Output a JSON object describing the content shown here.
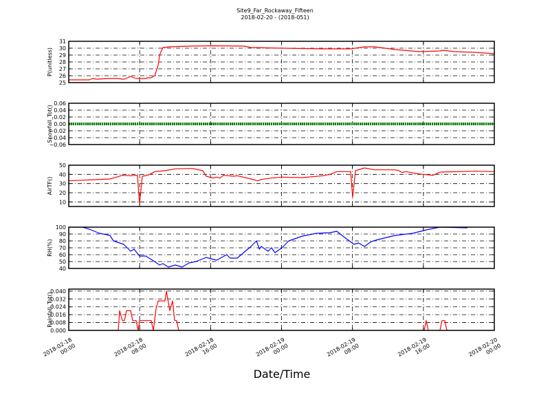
{
  "title": "Site9_Far_Rockaway_Fifteen",
  "subtitle": "2018-02-20 - (2018-051)",
  "xlabel": "Date/Time",
  "x_ticks": [
    {
      "hour": 0,
      "line1": "2018-02-18",
      "line2": "00:00"
    },
    {
      "hour": 8,
      "line1": "2018-02-18",
      "line2": "08:00"
    },
    {
      "hour": 16,
      "line1": "2018-02-18",
      "line2": "16:00"
    },
    {
      "hour": 24,
      "line1": "2018-02-19",
      "line2": "00:00"
    },
    {
      "hour": 32,
      "line1": "2018-02-19",
      "line2": "08:00"
    },
    {
      "hour": 40,
      "line1": "2018-02-19",
      "line2": "16:00"
    },
    {
      "hour": 48,
      "line1": "2018-02-20",
      "line2": "00:00"
    }
  ],
  "chart_data": [
    {
      "type": "line",
      "ylabel": "P(unitless)",
      "ylim": [
        25,
        31
      ],
      "yticks": [
        "25",
        "26",
        "27",
        "28",
        "29",
        "30",
        "31"
      ],
      "ytick_values": [
        25,
        26,
        27,
        28,
        29,
        30,
        31
      ],
      "color": "#ff0000",
      "grid": true,
      "xlim_hours": [
        0,
        48
      ],
      "points": [
        [
          0,
          25.4
        ],
        [
          1.55,
          25.4
        ],
        [
          2.33,
          25.4
        ],
        [
          2.7,
          25.6
        ],
        [
          3.1,
          25.5
        ],
        [
          4.65,
          25.6
        ],
        [
          5.58,
          25.6
        ],
        [
          6.05,
          25.5
        ],
        [
          6.28,
          25.5
        ],
        [
          6.98,
          25.9
        ],
        [
          7.6,
          25.6
        ],
        [
          8.68,
          25.6
        ],
        [
          8.92,
          25.7
        ],
        [
          9.3,
          25.7
        ],
        [
          9.69,
          26.0
        ],
        [
          10.08,
          27.5
        ],
        [
          10.24,
          29.0
        ],
        [
          10.62,
          30.1
        ],
        [
          11.4,
          30.2
        ],
        [
          13.57,
          30.3
        ],
        [
          16.28,
          30.35
        ],
        [
          19.77,
          30.3
        ],
        [
          20.55,
          30.1
        ],
        [
          24.04,
          30.0
        ],
        [
          28.69,
          29.9
        ],
        [
          31.79,
          29.9
        ],
        [
          33.35,
          30.2
        ],
        [
          34.51,
          30.2
        ],
        [
          36.83,
          29.8
        ],
        [
          39.54,
          29.5
        ],
        [
          41.87,
          29.6
        ],
        [
          42.26,
          29.7
        ],
        [
          43.5,
          29.5
        ],
        [
          45.74,
          29.4
        ],
        [
          48,
          29.2
        ]
      ]
    },
    {
      "type": "line",
      "ylabel": "Snowfall_Tot()",
      "ylim": [
        -0.06,
        0.06
      ],
      "yticks": [
        "−0.06",
        "−0.04",
        "−0.02",
        "0.00",
        "0.02",
        "0.04",
        "0.06"
      ],
      "ytick_values": [
        -0.06,
        -0.04,
        -0.02,
        0,
        0.02,
        0.04,
        0.06
      ],
      "color": "#008000",
      "style": "dotted-thick",
      "grid": true,
      "xlim_hours": [
        0,
        48
      ],
      "points": [
        [
          0,
          0
        ],
        [
          48,
          0
        ]
      ]
    },
    {
      "type": "line",
      "ylabel": "AirTF()",
      "ylim": [
        5,
        50
      ],
      "yticks": [
        "10",
        "20",
        "30",
        "40",
        "50"
      ],
      "ytick_values": [
        10,
        20,
        30,
        40,
        50
      ],
      "color": "#ff0000",
      "grid": true,
      "xlim_hours": [
        0,
        48
      ],
      "points": [
        [
          0,
          33
        ],
        [
          4.65,
          35
        ],
        [
          5.04,
          36
        ],
        [
          6.05,
          39
        ],
        [
          6.98,
          38.5
        ],
        [
          7.75,
          39
        ],
        [
          7.99,
          8
        ],
        [
          8.3,
          38
        ],
        [
          8.92,
          39
        ],
        [
          9.69,
          43
        ],
        [
          10.86,
          44
        ],
        [
          12.02,
          46
        ],
        [
          13.96,
          46.5
        ],
        [
          15.12,
          44
        ],
        [
          15.5,
          38
        ],
        [
          16.28,
          36
        ],
        [
          16.67,
          37
        ],
        [
          17.06,
          36
        ],
        [
          17.45,
          39
        ],
        [
          18.61,
          38
        ],
        [
          19.0,
          38.5
        ],
        [
          20.55,
          35
        ],
        [
          21.32,
          33
        ],
        [
          21.71,
          34.5
        ],
        [
          22.87,
          36
        ],
        [
          24.04,
          37
        ],
        [
          26.36,
          36.5
        ],
        [
          28.69,
          38.5
        ],
        [
          29.47,
          40
        ],
        [
          30.24,
          43
        ],
        [
          31.79,
          43
        ],
        [
          32.02,
          15
        ],
        [
          32.34,
          44
        ],
        [
          33.35,
          47
        ],
        [
          34.51,
          45
        ],
        [
          36.83,
          45
        ],
        [
          37.22,
          44
        ],
        [
          37.6,
          42
        ],
        [
          37.99,
          43
        ],
        [
          39.54,
          40.5
        ],
        [
          41.09,
          39
        ],
        [
          41.87,
          42.5
        ],
        [
          45.74,
          43.5
        ],
        [
          48,
          43
        ]
      ]
    },
    {
      "type": "line",
      "ylabel": "RH(%)",
      "ylim": [
        40,
        100
      ],
      "yticks": [
        "40",
        "50",
        "60",
        "70",
        "80",
        "90",
        "100"
      ],
      "ytick_values": [
        40,
        50,
        60,
        70,
        80,
        90,
        100
      ],
      "color": "#0000ff",
      "grid": true,
      "xlim_hours": [
        0,
        48
      ],
      "points": [
        [
          0,
          100
        ],
        [
          1.55,
          100
        ],
        [
          2.33,
          97
        ],
        [
          3.49,
          91
        ],
        [
          4.65,
          88
        ],
        [
          5.04,
          80
        ],
        [
          6.2,
          75
        ],
        [
          6.98,
          65
        ],
        [
          7.37,
          68
        ],
        [
          7.99,
          58
        ],
        [
          8.68,
          58
        ],
        [
          9.69,
          50
        ],
        [
          10.24,
          45
        ],
        [
          10.62,
          47
        ],
        [
          11.24,
          42
        ],
        [
          12.02,
          45
        ],
        [
          12.79,
          42
        ],
        [
          13.57,
          48
        ],
        [
          14.34,
          50
        ],
        [
          15.5,
          56
        ],
        [
          16.67,
          52
        ],
        [
          17.83,
          60
        ],
        [
          18.2,
          55
        ],
        [
          19.0,
          55
        ],
        [
          20.55,
          72
        ],
        [
          21.17,
          80
        ],
        [
          21.5,
          68
        ],
        [
          21.71,
          72
        ],
        [
          22.49,
          65
        ],
        [
          22.87,
          70
        ],
        [
          23.26,
          63
        ],
        [
          24.04,
          70
        ],
        [
          24.81,
          80
        ],
        [
          26.36,
          87
        ],
        [
          27.91,
          91
        ],
        [
          29.47,
          92
        ],
        [
          30.24,
          94
        ],
        [
          31.02,
          86
        ],
        [
          32.18,
          75
        ],
        [
          32.7,
          77
        ],
        [
          33.35,
          72
        ],
        [
          34.12,
          79
        ],
        [
          34.89,
          82
        ],
        [
          36.83,
          88
        ],
        [
          38.77,
          91
        ],
        [
          40.32,
          96
        ],
        [
          41.87,
          100
        ],
        [
          44.97,
          99
        ]
      ]
    },
    {
      "type": "line",
      "ylabel": "Rainfall_Tot()",
      "ylim": [
        0,
        0.042
      ],
      "yticks": [
        "0.000",
        "0.008",
        "0.016",
        "0.024",
        "0.032",
        "0.040"
      ],
      "ytick_values": [
        0,
        0.008,
        0.016,
        0.024,
        0.032,
        0.04
      ],
      "color": "#ff0000",
      "grid": true,
      "xlim_hours": [
        0,
        48
      ],
      "points": [
        [
          0,
          0
        ],
        [
          5.58,
          0
        ],
        [
          5.74,
          0.02
        ],
        [
          6.05,
          0.01
        ],
        [
          6.28,
          0.01
        ],
        [
          6.51,
          0.02
        ],
        [
          6.98,
          0.02
        ],
        [
          7.21,
          0.01
        ],
        [
          7.6,
          0.01
        ],
        [
          7.83,
          0
        ],
        [
          7.99,
          0.01
        ],
        [
          9.3,
          0.01
        ],
        [
          9.54,
          0
        ],
        [
          9.85,
          0.022
        ],
        [
          10.08,
          0.03
        ],
        [
          10.86,
          0.03
        ],
        [
          11.01,
          0.04
        ],
        [
          11.4,
          0.02
        ],
        [
          11.71,
          0.03
        ],
        [
          11.94,
          0.01
        ],
        [
          12.17,
          0.01
        ],
        [
          12.41,
          0
        ],
        [
          40.09,
          0
        ],
        [
          40.32,
          0.01
        ],
        [
          40.55,
          0
        ],
        [
          41.87,
          0
        ],
        [
          42.1,
          0.01
        ],
        [
          42.41,
          0.01
        ],
        [
          42.65,
          0
        ],
        [
          48,
          0
        ]
      ]
    }
  ]
}
